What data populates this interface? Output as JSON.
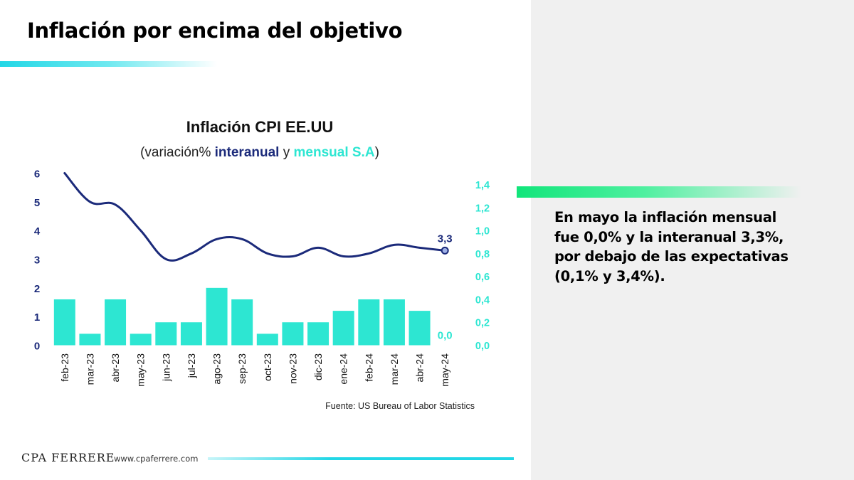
{
  "slide": {
    "title": "Inflación por encima del objetivo",
    "summary_lines": [
      "En mayo la inflación mensual",
      "fue 0,0% y la interanual 3,3%,",
      "por debajo de las expectativas",
      "(0,1% y 3,4%)."
    ],
    "footer_brand": "CPA FERRERE",
    "footer_url": "www.cpaferrere.com",
    "colors": {
      "accent_cyan": "#22d7e6",
      "accent_green": "#11e57a",
      "panel_gray": "#f0f0f0"
    }
  },
  "chart_data": {
    "type": "bar",
    "title": "Inflación CPI EE.UU",
    "subtitle_parts": [
      "(variación% ",
      "interanual",
      " y ",
      "mensual S.A",
      ")"
    ],
    "source": "Fuente: US Bureau of Labor Statistics",
    "categories": [
      "feb-23",
      "mar-23",
      "abr-23",
      "may-23",
      "jun-23",
      "jul-23",
      "ago-23",
      "sep-23",
      "oct-23",
      "nov-23",
      "dic-23",
      "ene-24",
      "feb-24",
      "mar-24",
      "abr-24",
      "may-24"
    ],
    "series": [
      {
        "name": "interanual",
        "type": "line",
        "axis": "left",
        "color": "#1b2a7a",
        "values": [
          6.0,
          5.0,
          4.9,
          4.0,
          3.0,
          3.2,
          3.7,
          3.7,
          3.2,
          3.1,
          3.4,
          3.1,
          3.2,
          3.5,
          3.4,
          3.3
        ]
      },
      {
        "name": "mensual S.A",
        "type": "bar",
        "axis": "right",
        "color": "#2de6d2",
        "values": [
          0.4,
          0.1,
          0.4,
          0.1,
          0.2,
          0.2,
          0.5,
          0.4,
          0.1,
          0.2,
          0.2,
          0.3,
          0.4,
          0.4,
          0.3,
          0.0
        ]
      }
    ],
    "y_left": {
      "ylim": [
        0,
        6
      ],
      "ticks": [
        "0",
        "1",
        "2",
        "3",
        "4",
        "5",
        "6"
      ]
    },
    "y_right": {
      "ylim": [
        0,
        1.5
      ],
      "ticks": [
        "0,0",
        "0,2",
        "0,4",
        "0,6",
        "0,8",
        "1,0",
        "1,2",
        "1,4"
      ]
    },
    "data_labels": {
      "last_line": "3,3",
      "last_bar": "0,0"
    },
    "grid": false,
    "legend": "none"
  }
}
